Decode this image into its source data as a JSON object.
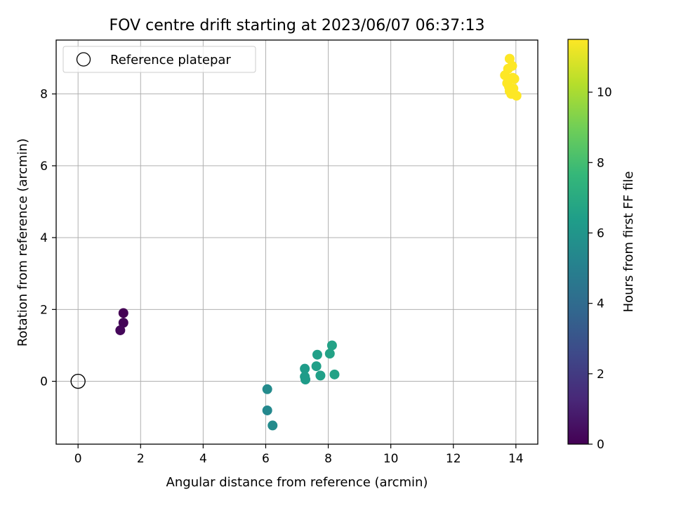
{
  "chart_data": {
    "type": "scatter",
    "title": "FOV centre drift starting at 2023/06/07 06:37:13",
    "xlabel": "Angular distance from reference (arcmin)",
    "ylabel": "Rotation from reference (arcmin)",
    "xlim": [
      -0.7,
      14.7
    ],
    "ylim": [
      -1.75,
      9.5
    ],
    "x_ticks": [
      0,
      2,
      4,
      6,
      8,
      10,
      12,
      14
    ],
    "y_ticks": [
      0,
      2,
      4,
      6,
      8
    ],
    "grid": true,
    "legend": {
      "placement": "upper-left",
      "entries": [
        "Reference platepar"
      ]
    },
    "reference_point": {
      "x": 0,
      "y": 0,
      "marker": "hollow-circle",
      "edge_color": "#000000"
    },
    "colorbar": {
      "label": "Hours from first FF file",
      "min": 0,
      "max": 11.5,
      "ticks": [
        0,
        2,
        4,
        6,
        8,
        10
      ],
      "colormap": "viridis"
    },
    "points": [
      {
        "x": 1.45,
        "y": 1.9,
        "c": 0.0
      },
      {
        "x": 1.45,
        "y": 1.63,
        "c": 0.1
      },
      {
        "x": 1.35,
        "y": 1.42,
        "c": 0.2
      },
      {
        "x": 6.05,
        "y": -0.22,
        "c": 5.5
      },
      {
        "x": 6.05,
        "y": -0.81,
        "c": 5.4
      },
      {
        "x": 6.22,
        "y": -1.23,
        "c": 5.5
      },
      {
        "x": 7.25,
        "y": 0.35,
        "c": 6.3
      },
      {
        "x": 7.25,
        "y": 0.13,
        "c": 6.3
      },
      {
        "x": 7.27,
        "y": 0.05,
        "c": 6.3
      },
      {
        "x": 7.62,
        "y": 0.42,
        "c": 6.5
      },
      {
        "x": 7.65,
        "y": 0.74,
        "c": 6.5
      },
      {
        "x": 7.75,
        "y": 0.16,
        "c": 6.5
      },
      {
        "x": 8.05,
        "y": 0.77,
        "c": 6.6
      },
      {
        "x": 8.12,
        "y": 1.0,
        "c": 6.6
      },
      {
        "x": 8.2,
        "y": 0.19,
        "c": 6.6
      },
      {
        "x": 13.65,
        "y": 8.52,
        "c": 11.5
      },
      {
        "x": 13.75,
        "y": 8.7,
        "c": 11.5
      },
      {
        "x": 13.8,
        "y": 8.98,
        "c": 11.5
      },
      {
        "x": 13.88,
        "y": 8.78,
        "c": 11.5
      },
      {
        "x": 13.9,
        "y": 8.45,
        "c": 11.5
      },
      {
        "x": 13.95,
        "y": 8.42,
        "c": 11.5
      },
      {
        "x": 13.72,
        "y": 8.3,
        "c": 11.5
      },
      {
        "x": 13.78,
        "y": 8.2,
        "c": 11.5
      },
      {
        "x": 13.8,
        "y": 8.08,
        "c": 11.5
      },
      {
        "x": 13.85,
        "y": 8.0,
        "c": 11.5
      },
      {
        "x": 13.92,
        "y": 8.15,
        "c": 11.5
      },
      {
        "x": 14.02,
        "y": 7.95,
        "c": 11.5
      }
    ]
  }
}
